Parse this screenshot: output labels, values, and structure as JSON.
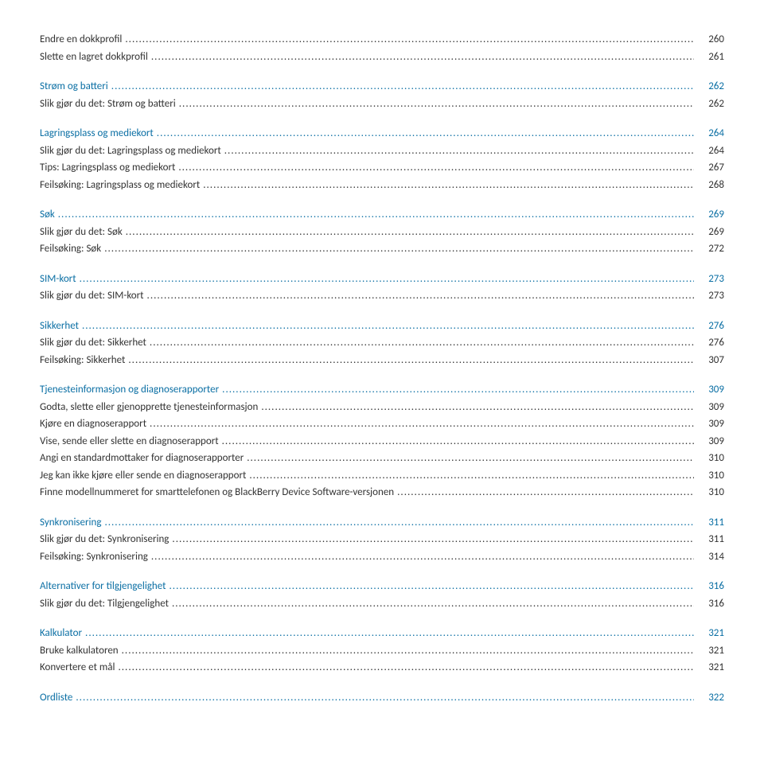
{
  "colors": {
    "link": "#0b6fa4",
    "text": "#333333",
    "background": "#ffffff"
  },
  "font": {
    "family": "Calibri",
    "size_pt": 10
  },
  "toc_entries": [
    {
      "label": "Endre en dokkprofil",
      "page": "260",
      "link": false,
      "section_start": false
    },
    {
      "label": "Slette en lagret dokkprofil",
      "page": "261",
      "link": false,
      "section_start": false
    },
    {
      "label": "Strøm og batteri",
      "page": "262",
      "link": true,
      "section_start": true
    },
    {
      "label": "Slik gjør du det: Strøm og batteri",
      "page": "262",
      "link": false,
      "section_start": false
    },
    {
      "label": "Lagringsplass og mediekort",
      "page": "264",
      "link": true,
      "section_start": true
    },
    {
      "label": "Slik gjør du det: Lagringsplass og mediekort",
      "page": "264",
      "link": false,
      "section_start": false
    },
    {
      "label": "Tips: Lagringsplass og mediekort",
      "page": "267",
      "link": false,
      "section_start": false
    },
    {
      "label": "Feilsøking: Lagringsplass og mediekort",
      "page": "268",
      "link": false,
      "section_start": false
    },
    {
      "label": "Søk",
      "page": "269",
      "link": true,
      "section_start": true
    },
    {
      "label": "Slik gjør du det: Søk",
      "page": "269",
      "link": false,
      "section_start": false
    },
    {
      "label": "Feilsøking: Søk",
      "page": "272",
      "link": false,
      "section_start": false
    },
    {
      "label": "SIM-kort",
      "page": "273",
      "link": true,
      "section_start": true
    },
    {
      "label": "Slik gjør du det: SIM-kort",
      "page": "273",
      "link": false,
      "section_start": false
    },
    {
      "label": "Sikkerhet",
      "page": "276",
      "link": true,
      "section_start": true
    },
    {
      "label": "Slik gjør du det: Sikkerhet",
      "page": "276",
      "link": false,
      "section_start": false
    },
    {
      "label": "Feilsøking: Sikkerhet",
      "page": "307",
      "link": false,
      "section_start": false
    },
    {
      "label": "Tjenesteinformasjon og diagnoserapporter",
      "page": "309",
      "link": true,
      "section_start": true
    },
    {
      "label": "Godta, slette eller gjenopprette tjenesteinformasjon",
      "page": "309",
      "link": false,
      "section_start": false
    },
    {
      "label": "Kjøre en diagnoserapport",
      "page": "309",
      "link": false,
      "section_start": false
    },
    {
      "label": "Vise, sende eller slette en diagnoserapport",
      "page": "309",
      "link": false,
      "section_start": false
    },
    {
      "label": "Angi en standardmottaker for diagnoserapporter",
      "page": "310",
      "link": false,
      "section_start": false
    },
    {
      "label": "Jeg kan ikke kjøre eller sende en diagnoserapport",
      "page": "310",
      "link": false,
      "section_start": false
    },
    {
      "label": "Finne modellnummeret for smarttelefonen og BlackBerry Device Software-versjonen",
      "page": "310",
      "link": false,
      "section_start": false
    },
    {
      "label": "Synkronisering",
      "page": "311",
      "link": true,
      "section_start": true
    },
    {
      "label": "Slik gjør du det: Synkronisering",
      "page": "311",
      "link": false,
      "section_start": false
    },
    {
      "label": "Feilsøking: Synkronisering",
      "page": "314",
      "link": false,
      "section_start": false
    },
    {
      "label": "Alternativer for tilgjengelighet",
      "page": "316",
      "link": true,
      "section_start": true
    },
    {
      "label": "Slik gjør du det: Tilgjengelighet",
      "page": "316",
      "link": false,
      "section_start": false
    },
    {
      "label": "Kalkulator",
      "page": "321",
      "link": true,
      "section_start": true
    },
    {
      "label": "Bruke kalkulatoren",
      "page": "321",
      "link": false,
      "section_start": false
    },
    {
      "label": "Konvertere et mål",
      "page": "321",
      "link": false,
      "section_start": false
    },
    {
      "label": "Ordliste",
      "page": "322",
      "link": true,
      "section_start": true
    }
  ]
}
